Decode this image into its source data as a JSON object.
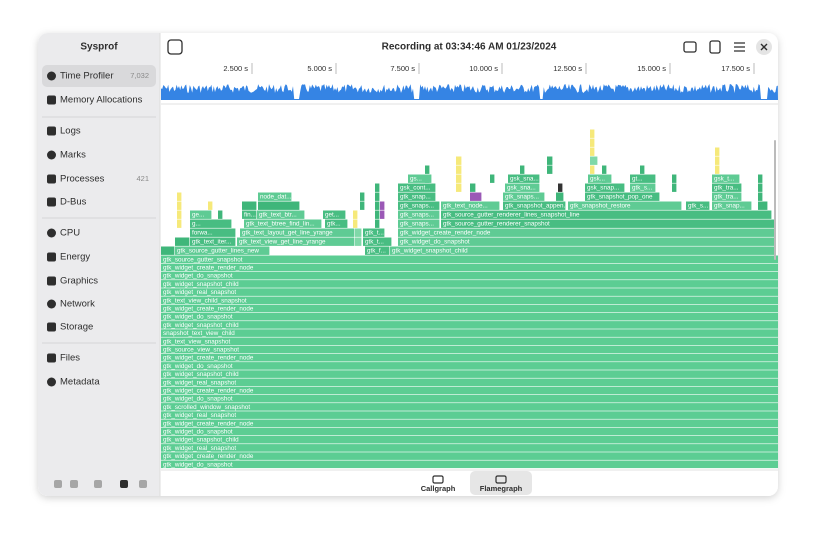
{
  "window": {
    "app_title": "Sysprof",
    "title": "Recording at 03:34:46 AM 01/23/2024"
  },
  "sidebar": {
    "items": [
      {
        "label": "Time Profiler",
        "count": "7,032"
      },
      {
        "label": "Memory Allocations"
      },
      {
        "label": "Logs"
      },
      {
        "label": "Marks"
      },
      {
        "label": "Processes",
        "count": "421"
      },
      {
        "label": "D-Bus"
      },
      {
        "label": "CPU"
      },
      {
        "label": "Energy"
      },
      {
        "label": "Graphics"
      },
      {
        "label": "Network"
      },
      {
        "label": "Storage"
      },
      {
        "label": "Files"
      },
      {
        "label": "Metadata"
      }
    ]
  },
  "timeline": {
    "ticks": [
      "2.500 s",
      "5.000 s",
      "7.500 s",
      "10.000 s",
      "12.500 s",
      "15.000 s",
      "17.500 s"
    ]
  },
  "flamegraph": {
    "stack": [
      "gtk_source_gutter_snapshot",
      "gtk_widget_create_render_node",
      "gtk_widget_do_snapshot",
      "gtk_widget_snapshot_child",
      "gtk_widget_real_snapshot",
      "gtk_text_view_child_snapshot",
      "gtk_widget_create_render_node",
      "gtk_widget_do_snapshot",
      "gtk_widget_snapshot_child",
      "snapshot_text_view_child",
      "gtk_text_view_snapshot",
      "gtk_source_view_snapshot",
      "gtk_widget_create_render_node",
      "gtk_widget_do_snapshot",
      "gtk_widget_snapshot_child",
      "gtk_widget_real_snapshot",
      "gtk_widget_create_render_node",
      "gtk_widget_do_snapshot",
      "gtk_scrolled_window_snapshot",
      "gtk_widget_real_snapshot",
      "gtk_widget_create_render_node",
      "gtk_widget_do_snapshot",
      "gtk_widget_snapshot_child",
      "gtk_widget_real_snapshot",
      "gtk_widget_create_render_node",
      "gtk_widget_do_snapshot"
    ],
    "frames": [
      "gtk_source_gutter_lines_new",
      "gtk_f...",
      "gtk_widget_snapshot_child",
      "gtk_text_iter...",
      "gtk_text_view_get_line_yrange",
      "gtk_t...",
      "gtk_widget_do_snapshot",
      "forwa...",
      "gtk_text_layout_get_line_yrange",
      "gtk_t...",
      "gtk_widget_create_render_node",
      "g...",
      "gtk_text_btree_find_lin...",
      "gtk...",
      "gtk_snaps...",
      "gtk_source_gutter_renderer_snapshot",
      "ge...",
      "fin...",
      "gtk_text_btr...",
      "get...",
      "gtk_snaps...",
      "gtk_source_gutter_renderer_lines_snapshot_line",
      "node_dat...",
      "gtk_snaps...",
      "gtk_text_node...",
      "gtk_snapshot_appen...",
      "gtk_snapshot_restore",
      "gtk_s...",
      "gtk_snap...",
      "gtk_snap...",
      "gtk_snaps...",
      "gtk_snapshot_pop_one",
      "gtk_tra...",
      "gsk_cont...",
      "gsk_sna...",
      "gsk_snap...",
      "gtk_s...",
      "gtk_tra...",
      "gs...",
      "gsk_sna...",
      "gsk...",
      "gt...",
      "gsk_t..."
    ]
  },
  "tabs": [
    {
      "label": "Callgraph"
    },
    {
      "label": "Flamegraph"
    }
  ]
}
